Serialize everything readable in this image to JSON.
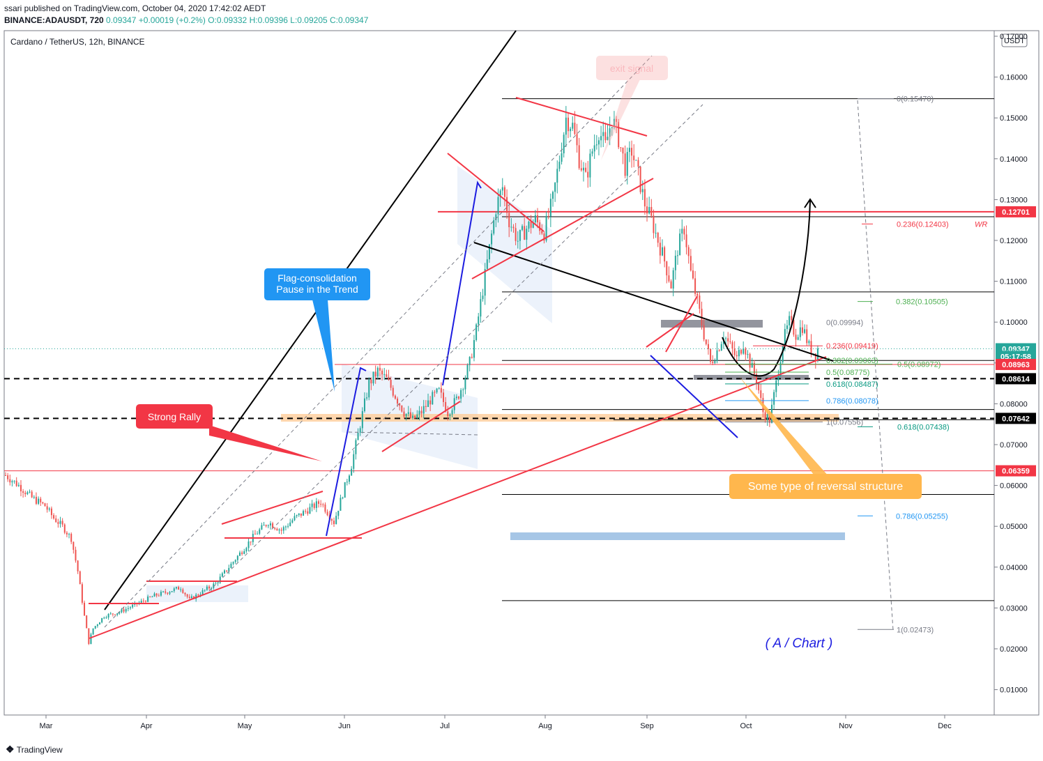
{
  "header": {
    "published_line": "ssari published on TradingView.com, October 04, 2020 17:42:02 AEDT",
    "symbol": "BINANCE:ADAUSDT, 720",
    "last": "0.09347",
    "change": "+0.00019 (+0.2%)",
    "ohlc": "O:0.09332 H:0.09396 L:0.09205 C:0.09347"
  },
  "chart_title": "Cardano / TetherUS, 12h, BINANCE",
  "currency_badge": "USDT",
  "footer_logo": "TradingView",
  "colors": {
    "up": "#26a69a",
    "down": "#ef5350",
    "red_line": "#f23645",
    "blue_line": "#1c1ce0",
    "orange_band": "#ffcc99",
    "callout_blue": "#2196f3",
    "callout_orange": "#ffb74d"
  },
  "chart_data": {
    "type": "candlestick",
    "x_ticks": [
      "Mar",
      "Apr",
      "May",
      "Jun",
      "Jul",
      "Aug",
      "Sep",
      "Oct",
      "Nov",
      "Dec"
    ],
    "y_ticks": [
      "0.17000",
      "0.16000",
      "0.15000",
      "0.14000",
      "0.13000",
      "0.12000",
      "0.11000",
      "0.10000",
      "0.09000",
      "0.08000",
      "0.07000",
      "0.06000",
      "0.05000",
      "0.04000",
      "0.03000",
      "0.02000",
      "0.01000"
    ],
    "ylim": [
      0.0025,
      0.1715
    ],
    "price_tags": [
      {
        "value": "0.12701",
        "price": 0.12701,
        "color": "#f23645"
      },
      {
        "value": "0.09347",
        "price": 0.09347,
        "color": "#26a69a"
      },
      {
        "value": "05:17:58",
        "price": 0.0916,
        "color": "#26a69a"
      },
      {
        "value": "0.08963",
        "price": 0.08963,
        "color": "#f23645"
      },
      {
        "value": "0.08614",
        "price": 0.08614,
        "color": "#000000"
      },
      {
        "value": "0.07642",
        "price": 0.07642,
        "color": "#000000"
      },
      {
        "value": "0.06359",
        "price": 0.06359,
        "color": "#f23645"
      }
    ],
    "fib_labels": [
      {
        "text": "0(0.15470)",
        "color": "#787b86"
      },
      {
        "text": "0.236(0.12403)",
        "color": "#f23645"
      },
      {
        "text": "0.382(0.10505)",
        "color": "#4caf50"
      },
      {
        "text": "0(0.09994)",
        "color": "#787b86"
      },
      {
        "text": "0.236(0.09419)",
        "color": "#f23645"
      },
      {
        "text": "0.382(0.09063)",
        "color": "#4caf50"
      },
      {
        "text": "0.5(0.08972)",
        "color": "#4caf50"
      },
      {
        "text": "0.5(0.08775)",
        "color": "#4caf50"
      },
      {
        "text": "0.618(0.08487)",
        "color": "#089981"
      },
      {
        "text": "0.786(0.08078)",
        "color": "#2196f3"
      },
      {
        "text": "1(0.07556)",
        "color": "#787b86"
      },
      {
        "text": "0.618(0.07438)",
        "color": "#089981"
      },
      {
        "text": "0.786(0.05255)",
        "color": "#2196f3"
      },
      {
        "text": "1(0.02473)",
        "color": "#787b86"
      },
      {
        "text": "WR",
        "color": "#f23645"
      }
    ],
    "annotations": {
      "strong_rally": "Strong Rally",
      "flag_line1": "Flag-consolidation",
      "flag_line2": "Pause in the Trend",
      "exit_signal": "exit signal",
      "reversal": "Some type of reversal structure",
      "a_chart": "( A / Chart )"
    },
    "path": [
      [
        0,
        0.0625
      ],
      [
        6,
        0.06
      ],
      [
        12,
        0.057
      ],
      [
        18,
        0.055
      ],
      [
        22,
        0.052
      ],
      [
        26,
        0.05
      ],
      [
        30,
        0.047
      ],
      [
        33,
        0.039
      ],
      [
        36,
        0.028
      ],
      [
        38,
        0.0215
      ],
      [
        40,
        0.025
      ],
      [
        45,
        0.028
      ],
      [
        52,
        0.029
      ],
      [
        60,
        0.031
      ],
      [
        68,
        0.033
      ],
      [
        74,
        0.034
      ],
      [
        80,
        0.035
      ],
      [
        84,
        0.032
      ],
      [
        90,
        0.034
      ],
      [
        96,
        0.036
      ],
      [
        102,
        0.04
      ],
      [
        108,
        0.044
      ],
      [
        114,
        0.048
      ],
      [
        120,
        0.051
      ],
      [
        126,
        0.049
      ],
      [
        132,
        0.052
      ],
      [
        138,
        0.054
      ],
      [
        144,
        0.056
      ],
      [
        150,
        0.051
      ],
      [
        154,
        0.058
      ],
      [
        158,
        0.065
      ],
      [
        162,
        0.075
      ],
      [
        166,
        0.085
      ],
      [
        170,
        0.088
      ],
      [
        174,
        0.086
      ],
      [
        178,
        0.082
      ],
      [
        182,
        0.078
      ],
      [
        186,
        0.076
      ],
      [
        190,
        0.078
      ],
      [
        194,
        0.081
      ],
      [
        198,
        0.083
      ],
      [
        202,
        0.078
      ],
      [
        206,
        0.081
      ],
      [
        209,
        0.085
      ],
      [
        212,
        0.09
      ],
      [
        215,
        0.098
      ],
      [
        218,
        0.108
      ],
      [
        221,
        0.118
      ],
      [
        224,
        0.128
      ],
      [
        227,
        0.133
      ],
      [
        230,
        0.125
      ],
      [
        234,
        0.12
      ],
      [
        238,
        0.123
      ],
      [
        242,
        0.125
      ],
      [
        246,
        0.122
      ],
      [
        250,
        0.13
      ],
      [
        253,
        0.14
      ],
      [
        256,
        0.15
      ],
      [
        259,
        0.148
      ],
      [
        262,
        0.14
      ],
      [
        265,
        0.135
      ],
      [
        268,
        0.142
      ],
      [
        271,
        0.147
      ],
      [
        274,
        0.143
      ],
      [
        277,
        0.15
      ],
      [
        280,
        0.145
      ],
      [
        283,
        0.138
      ],
      [
        286,
        0.142
      ],
      [
        289,
        0.136
      ],
      [
        292,
        0.129
      ],
      [
        295,
        0.125
      ],
      [
        298,
        0.12
      ],
      [
        301,
        0.115
      ],
      [
        304,
        0.109
      ],
      [
        307,
        0.118
      ],
      [
        310,
        0.123
      ],
      [
        313,
        0.112
      ],
      [
        316,
        0.105
      ],
      [
        319,
        0.097
      ],
      [
        322,
        0.09
      ],
      [
        325,
        0.093
      ],
      [
        328,
        0.097
      ],
      [
        331,
        0.094
      ],
      [
        334,
        0.091
      ],
      [
        337,
        0.095
      ],
      [
        340,
        0.09
      ],
      [
        343,
        0.086
      ],
      [
        346,
        0.078
      ],
      [
        349,
        0.076
      ],
      [
        352,
        0.085
      ],
      [
        355,
        0.095
      ],
      [
        358,
        0.1
      ],
      [
        361,
        0.097
      ],
      [
        364,
        0.099
      ],
      [
        367,
        0.094
      ],
      [
        370,
        0.092
      ],
      [
        371,
        0.0935
      ]
    ]
  }
}
